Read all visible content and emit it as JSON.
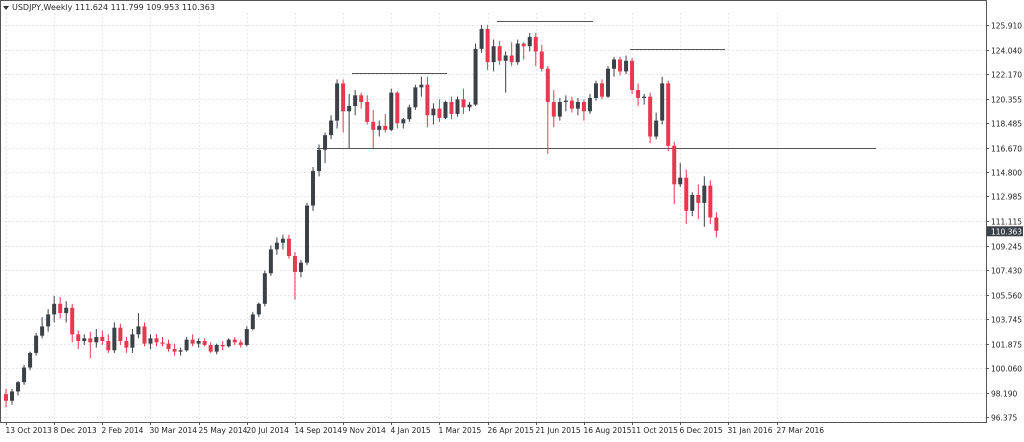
{
  "header": {
    "symbol": "USDJPY,Weekly",
    "ohlc": "111.624 111.799 109.953 110.363"
  },
  "colors": {
    "bull": "#3c4148",
    "bear": "#e8384f",
    "grid": "#e6e6e6",
    "axis": "#555555",
    "trendline": "#333333",
    "price_tag_bg": "#3c4148",
    "price_tag_text": "#ffffff"
  },
  "chart_data": {
    "type": "candlestick",
    "symbol": "USDJPY",
    "timeframe": "Weekly",
    "current_price": "110.363",
    "ylim": [
      96.0,
      126.8
    ],
    "y_ticks": [
      "125.910",
      "124.040",
      "122.170",
      "120.355",
      "118.485",
      "116.670",
      "114.800",
      "112.985",
      "111.115",
      "109.245",
      "107.430",
      "105.560",
      "103.745",
      "101.875",
      "100.060",
      "98.190",
      "96.375"
    ],
    "x_labels": [
      {
        "label": "13 Oct 2013",
        "index": 0
      },
      {
        "label": "8 Dec 2013",
        "index": 8
      },
      {
        "label": "2 Feb 2014",
        "index": 16
      },
      {
        "label": "30 Mar 2014",
        "index": 24
      },
      {
        "label": "25 May 2014",
        "index": 32
      },
      {
        "label": "20 Jul 2014",
        "index": 40
      },
      {
        "label": "14 Sep 2014",
        "index": 48
      },
      {
        "label": "9 Nov 2014",
        "index": 56
      },
      {
        "label": "4 Jan 2015",
        "index": 64
      },
      {
        "label": "1 Mar 2015",
        "index": 72
      },
      {
        "label": "26 Apr 2015",
        "index": 80
      },
      {
        "label": "21 Jun 2015",
        "index": 88
      },
      {
        "label": "16 Aug 2015",
        "index": 96
      },
      {
        "label": "11 Oct 2015",
        "index": 104
      },
      {
        "label": "6 Dec 2015",
        "index": 112
      },
      {
        "label": "31 Jan 2016",
        "index": 120
      },
      {
        "label": "27 Mar 2016",
        "index": 128
      }
    ],
    "candles": [
      [
        98.1,
        98.5,
        97.1,
        97.6
      ],
      [
        97.6,
        98.5,
        97.3,
        98.3
      ],
      [
        98.3,
        99.1,
        98.0,
        99.0
      ],
      [
        99.0,
        100.3,
        98.8,
        100.1
      ],
      [
        100.1,
        101.3,
        99.9,
        101.2
      ],
      [
        101.2,
        102.7,
        101.0,
        102.5
      ],
      [
        102.5,
        103.9,
        102.3,
        103.2
      ],
      [
        103.2,
        104.5,
        102.8,
        104.1
      ],
      [
        104.1,
        105.5,
        103.5,
        104.9
      ],
      [
        104.9,
        105.4,
        103.8,
        104.2
      ],
      [
        104.2,
        105.1,
        103.5,
        104.6
      ],
      [
        104.6,
        104.9,
        102.0,
        102.6
      ],
      [
        102.6,
        102.9,
        101.5,
        102.1
      ],
      [
        102.1,
        102.6,
        101.8,
        102.3
      ],
      [
        102.3,
        102.8,
        100.8,
        102.0
      ],
      [
        102.0,
        103.0,
        101.6,
        102.4
      ],
      [
        102.4,
        102.9,
        101.8,
        102.1
      ],
      [
        102.1,
        102.6,
        101.2,
        101.4
      ],
      [
        101.4,
        103.5,
        101.2,
        103.1
      ],
      [
        103.1,
        103.4,
        101.8,
        102.1
      ],
      [
        102.1,
        102.4,
        101.2,
        101.6
      ],
      [
        101.6,
        103.0,
        101.2,
        102.6
      ],
      [
        102.6,
        104.2,
        102.3,
        103.2
      ],
      [
        103.2,
        103.5,
        101.7,
        101.9
      ],
      [
        101.9,
        102.6,
        101.5,
        102.3
      ],
      [
        102.3,
        102.6,
        101.7,
        102.0
      ],
      [
        102.0,
        102.4,
        101.7,
        101.9
      ],
      [
        101.9,
        102.2,
        101.3,
        101.5
      ],
      [
        101.5,
        101.9,
        101.0,
        101.3
      ],
      [
        101.3,
        101.6,
        101.0,
        101.4
      ],
      [
        101.4,
        102.4,
        101.3,
        102.2
      ],
      [
        102.2,
        102.6,
        101.7,
        101.9
      ],
      [
        101.9,
        102.3,
        101.6,
        102.1
      ],
      [
        102.1,
        102.3,
        101.7,
        101.8
      ],
      [
        101.8,
        102.0,
        101.2,
        101.3
      ],
      [
        101.3,
        101.9,
        101.1,
        101.8
      ],
      [
        101.8,
        102.1,
        101.4,
        101.7
      ],
      [
        101.7,
        102.3,
        101.6,
        102.2
      ],
      [
        102.2,
        102.4,
        101.8,
        102.0
      ],
      [
        102.0,
        102.2,
        101.6,
        101.8
      ],
      [
        101.8,
        103.2,
        101.7,
        103.0
      ],
      [
        103.0,
        104.3,
        102.9,
        104.1
      ],
      [
        104.1,
        105.0,
        103.9,
        104.9
      ],
      [
        104.9,
        107.4,
        104.7,
        107.2
      ],
      [
        107.2,
        109.3,
        107.0,
        109.0
      ],
      [
        109.0,
        109.9,
        108.6,
        109.5
      ],
      [
        109.5,
        110.1,
        109.0,
        109.8
      ],
      [
        109.8,
        110.1,
        108.3,
        108.5
      ],
      [
        108.5,
        108.8,
        105.2,
        107.3
      ],
      [
        107.3,
        108.2,
        106.9,
        108.0
      ],
      [
        108.0,
        112.5,
        107.8,
        112.3
      ],
      [
        112.3,
        115.2,
        111.9,
        114.9
      ],
      [
        114.9,
        116.9,
        114.5,
        116.5
      ],
      [
        116.5,
        117.8,
        115.5,
        117.6
      ],
      [
        117.6,
        119.1,
        117.3,
        118.7
      ],
      [
        118.7,
        121.8,
        118.1,
        121.5
      ],
      [
        121.5,
        121.8,
        117.8,
        119.4
      ],
      [
        119.4,
        120.7,
        116.6,
        119.8
      ],
      [
        119.8,
        121.0,
        119.1,
        120.6
      ],
      [
        120.6,
        120.8,
        119.6,
        120.1
      ],
      [
        120.1,
        120.6,
        118.4,
        118.6
      ],
      [
        118.6,
        119.5,
        116.6,
        118.0
      ],
      [
        118.0,
        118.7,
        117.5,
        118.3
      ],
      [
        118.3,
        119.2,
        117.8,
        118.0
      ],
      [
        118.0,
        121.1,
        117.9,
        120.8
      ],
      [
        120.8,
        120.9,
        118.1,
        118.5
      ],
      [
        118.5,
        118.9,
        118.1,
        118.8
      ],
      [
        118.8,
        119.9,
        118.6,
        119.7
      ],
      [
        119.7,
        121.4,
        119.5,
        121.2
      ],
      [
        121.2,
        122.0,
        120.5,
        121.4
      ],
      [
        121.4,
        122.0,
        118.2,
        119.1
      ],
      [
        119.1,
        120.0,
        118.4,
        119.6
      ],
      [
        119.6,
        120.3,
        118.6,
        118.9
      ],
      [
        118.9,
        120.2,
        118.8,
        120.1
      ],
      [
        120.1,
        120.5,
        118.8,
        119.2
      ],
      [
        119.2,
        120.5,
        119.0,
        120.3
      ],
      [
        120.3,
        121.1,
        119.2,
        119.7
      ],
      [
        119.7,
        120.1,
        119.4,
        119.9
      ],
      [
        119.9,
        124.5,
        119.8,
        124.1
      ],
      [
        124.1,
        125.9,
        123.8,
        125.6
      ],
      [
        125.6,
        125.9,
        122.5,
        123.1
      ],
      [
        123.1,
        124.8,
        122.4,
        124.3
      ],
      [
        124.3,
        124.7,
        122.9,
        123.2
      ],
      [
        123.2,
        123.9,
        120.8,
        123.6
      ],
      [
        123.6,
        124.6,
        122.8,
        123.1
      ],
      [
        123.1,
        124.8,
        122.9,
        124.5
      ],
      [
        124.5,
        124.6,
        123.3,
        124.3
      ],
      [
        124.3,
        125.3,
        123.9,
        125.0
      ],
      [
        125.0,
        125.3,
        122.8,
        123.9
      ],
      [
        123.9,
        124.4,
        122.4,
        122.6
      ],
      [
        122.6,
        122.8,
        116.2,
        120.1
      ],
      [
        120.1,
        121.0,
        118.2,
        119.0
      ],
      [
        119.0,
        120.4,
        118.7,
        120.1
      ],
      [
        120.1,
        120.6,
        119.4,
        120.2
      ],
      [
        120.2,
        120.5,
        119.3,
        119.6
      ],
      [
        119.6,
        120.4,
        119.1,
        120.1
      ],
      [
        120.1,
        120.3,
        118.7,
        119.4
      ],
      [
        119.4,
        120.7,
        119.2,
        120.4
      ],
      [
        120.4,
        121.7,
        120.2,
        121.5
      ],
      [
        121.5,
        121.8,
        120.3,
        120.5
      ],
      [
        120.5,
        122.8,
        120.4,
        122.6
      ],
      [
        122.6,
        123.5,
        122.0,
        123.3
      ],
      [
        123.3,
        123.5,
        122.1,
        122.4
      ],
      [
        122.4,
        123.6,
        122.2,
        123.2
      ],
      [
        123.2,
        123.4,
        120.7,
        121.0
      ],
      [
        121.0,
        121.5,
        119.8,
        120.4
      ],
      [
        120.4,
        120.7,
        119.9,
        120.5
      ],
      [
        120.5,
        120.8,
        117.0,
        117.5
      ],
      [
        117.5,
        119.3,
        117.3,
        118.7
      ],
      [
        118.7,
        122.0,
        118.4,
        121.5
      ],
      [
        121.5,
        121.7,
        116.4,
        116.8
      ],
      [
        116.8,
        117.1,
        112.4,
        113.9
      ],
      [
        113.9,
        115.5,
        113.7,
        114.4
      ],
      [
        114.4,
        115.0,
        110.9,
        111.9
      ],
      [
        111.9,
        113.3,
        111.5,
        113.1
      ],
      [
        113.1,
        113.9,
        111.3,
        112.5
      ],
      [
        112.5,
        114.5,
        110.7,
        113.8
      ],
      [
        113.8,
        114.2,
        110.9,
        111.4
      ],
      [
        111.4,
        111.8,
        109.9,
        110.4
      ]
    ]
  }
}
